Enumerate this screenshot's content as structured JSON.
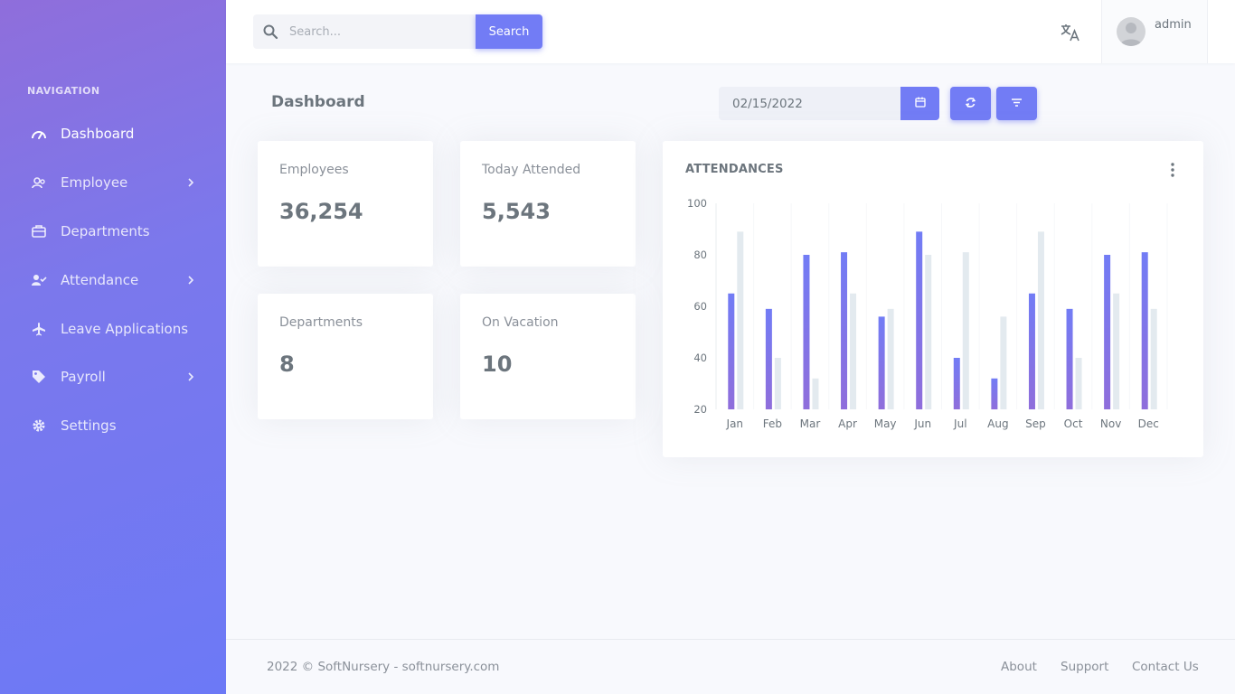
{
  "sidebar": {
    "heading": "NAVIGATION",
    "items": [
      {
        "label": "Dashboard",
        "icon": "speedometer-icon"
      },
      {
        "label": "Employee",
        "icon": "users-icon"
      },
      {
        "label": "Departments",
        "icon": "briefcase-icon"
      },
      {
        "label": "Attendance",
        "icon": "user-check-icon"
      },
      {
        "label": "Leave Applications",
        "icon": "airplane-icon"
      },
      {
        "label": "Payroll",
        "icon": "tag-icon"
      },
      {
        "label": "Settings",
        "icon": "gear-icon"
      }
    ]
  },
  "topbar": {
    "search_placeholder": "Search...",
    "search_button": "Search",
    "username": "admin"
  },
  "page": {
    "title": "Dashboard",
    "date_value": "02/15/2022"
  },
  "stats": [
    {
      "title": "Employees",
      "value": "36,254"
    },
    {
      "title": "Today Attended",
      "value": "5,543"
    },
    {
      "title": "Departments",
      "value": "8"
    },
    {
      "title": "On Vacation",
      "value": "10"
    }
  ],
  "chart": {
    "title": "ATTENDANCES"
  },
  "chart_data": {
    "type": "bar",
    "title": "ATTENDANCES",
    "categories": [
      "Jan",
      "Feb",
      "Mar",
      "Apr",
      "May",
      "Jun",
      "Jul",
      "Aug",
      "Sep",
      "Oct",
      "Nov",
      "Dec"
    ],
    "series": [
      {
        "values": [
          65,
          59,
          80,
          81,
          56,
          89,
          40,
          32,
          65,
          59,
          80,
          81
        ],
        "color": "#727cf5"
      },
      {
        "values": [
          89,
          40,
          32,
          65,
          59,
          80,
          81,
          56,
          89,
          40,
          65,
          59
        ],
        "color": "#e3eaef"
      }
    ],
    "yticks": [
      100,
      80,
      60,
      40,
      20
    ],
    "ylim": [
      20,
      100
    ],
    "xlabel": "",
    "ylabel": "",
    "grid": false
  },
  "footer": {
    "copyright": "2022 © SoftNursery - softnursery.com",
    "links": [
      "About",
      "Support",
      "Contact Us"
    ]
  },
  "colors": {
    "accent": "#727cf5",
    "sidebar_start": "#8f6edb",
    "sidebar_end": "#6c79f6"
  }
}
